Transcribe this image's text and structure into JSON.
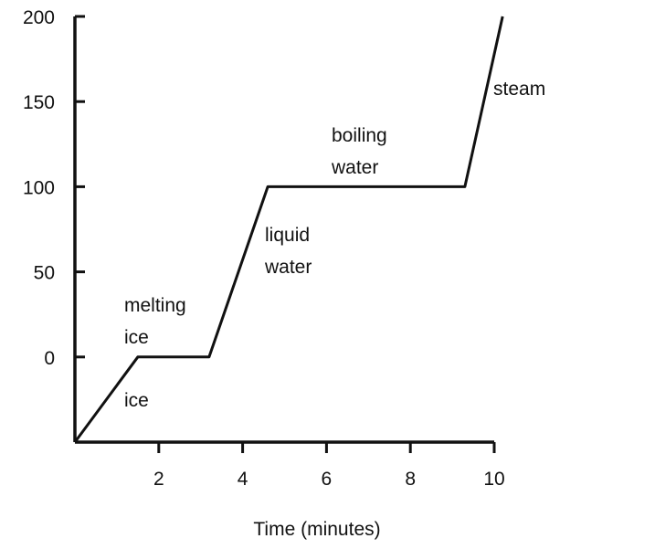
{
  "chart_data": {
    "type": "line",
    "title": "",
    "xlabel": "Time (minutes)",
    "ylabel": "",
    "xlim": [
      0,
      10
    ],
    "ylim": [
      -50,
      200
    ],
    "grid": false,
    "legend": "none",
    "x_ticks": [
      2,
      4,
      6,
      8,
      10
    ],
    "x_tick_labels": [
      "2",
      "4",
      "6",
      "8",
      "10"
    ],
    "y_ticks": [
      200,
      150,
      100,
      50,
      0
    ],
    "y_tick_labels": [
      "200",
      "150",
      "100",
      "50",
      "0"
    ],
    "series": [
      {
        "color": "#111111",
        "points": [
          {
            "x": 0,
            "y": -50
          },
          {
            "x": 1.5,
            "y": 0
          },
          {
            "x": 3.2,
            "y": 0
          },
          {
            "x": 4.6,
            "y": 100
          },
          {
            "x": 9.3,
            "y": 100
          },
          {
            "x": 10.2,
            "y": 200
          }
        ]
      }
    ],
    "annotations": [
      {
        "lines": [
          "ice"
        ]
      },
      {
        "lines": [
          "melting",
          "ice"
        ]
      },
      {
        "lines": [
          "liquid",
          "water"
        ]
      },
      {
        "lines": [
          "boiling",
          "water"
        ]
      },
      {
        "lines": [
          "steam"
        ]
      }
    ]
  }
}
